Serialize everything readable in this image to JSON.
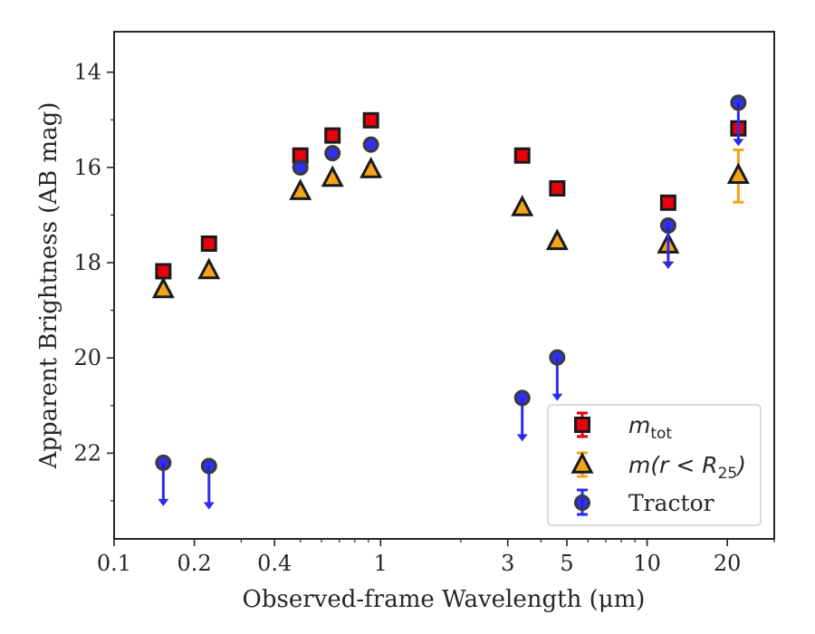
{
  "chart_data": {
    "type": "scatter",
    "xscale": "log",
    "xlim": [
      0.1,
      30
    ],
    "ylim": [
      23.8,
      13.15
    ],
    "y_inverted": true,
    "xlabel": "Observed-frame Wavelength (μm)",
    "ylabel": "Apparent Brightness (AB mag)",
    "x_ticks": [
      {
        "value": 0.1,
        "label": "0.1"
      },
      {
        "value": 0.2,
        "label": "0.2"
      },
      {
        "value": 0.4,
        "label": "0.4"
      },
      {
        "value": 1,
        "label": "1"
      },
      {
        "value": 3,
        "label": "3"
      },
      {
        "value": 5,
        "label": "5"
      },
      {
        "value": 10,
        "label": "10"
      },
      {
        "value": 20,
        "label": "20"
      }
    ],
    "x_minor_ticks": [
      0.3,
      0.5,
      0.6,
      0.7,
      0.8,
      0.9,
      2,
      4,
      6,
      7,
      8,
      9,
      30
    ],
    "y_ticks": [
      {
        "value": 14,
        "label": "14"
      },
      {
        "value": 16,
        "label": "16"
      },
      {
        "value": 18,
        "label": "18"
      },
      {
        "value": 20,
        "label": "20"
      },
      {
        "value": 22,
        "label": "22"
      }
    ],
    "y_minor_ticks": [
      15,
      17,
      19,
      21,
      23
    ],
    "legend_position": "lower-right",
    "series": [
      {
        "name": "m_tot",
        "marker": "square",
        "color": "#e8000b",
        "edge": "#1a1a1a",
        "points": [
          {
            "x": 0.153,
            "y": 18.18
          },
          {
            "x": 0.227,
            "y": 17.6
          },
          {
            "x": 0.5,
            "y": 15.75
          },
          {
            "x": 0.66,
            "y": 15.33
          },
          {
            "x": 0.92,
            "y": 15.01
          },
          {
            "x": 3.4,
            "y": 15.75
          },
          {
            "x": 4.6,
            "y": 16.44
          },
          {
            "x": 12,
            "y": 16.74
          },
          {
            "x": 22,
            "y": 15.18
          }
        ]
      },
      {
        "name": "m(r < R25)",
        "marker": "triangle",
        "color": "#f5a41a",
        "edge": "#1a1a1a",
        "points": [
          {
            "x": 0.153,
            "y": 18.58
          },
          {
            "x": 0.227,
            "y": 18.18
          },
          {
            "x": 0.5,
            "y": 16.52
          },
          {
            "x": 0.66,
            "y": 16.24
          },
          {
            "x": 0.92,
            "y": 16.06
          },
          {
            "x": 3.4,
            "y": 16.86
          },
          {
            "x": 4.6,
            "y": 17.57
          },
          {
            "x": 12,
            "y": 17.64,
            "err": 0.35
          },
          {
            "x": 22,
            "y": 16.18,
            "err": 0.55
          }
        ]
      },
      {
        "name": "Tractor",
        "marker": "circle",
        "color": "#1f1fe8",
        "edge": "#3a3a3a",
        "points": [
          {
            "x": 0.153,
            "y": 22.2,
            "upper_limit": true
          },
          {
            "x": 0.227,
            "y": 22.27,
            "upper_limit": true
          },
          {
            "x": 0.5,
            "y": 16.0
          },
          {
            "x": 0.66,
            "y": 15.7
          },
          {
            "x": 0.92,
            "y": 15.52
          },
          {
            "x": 3.4,
            "y": 20.84,
            "upper_limit": true
          },
          {
            "x": 4.6,
            "y": 19.99,
            "upper_limit": true
          },
          {
            "x": 12,
            "y": 17.22,
            "upper_limit": true
          },
          {
            "x": 22,
            "y": 14.64,
            "upper_limit": true
          }
        ]
      }
    ]
  },
  "legend": {
    "mtot_main": "m",
    "mtot_sub": "tot",
    "mr_prefix": "m(r < R",
    "mr_sub": "25",
    "mr_suffix": ")",
    "tractor": "Tractor"
  }
}
